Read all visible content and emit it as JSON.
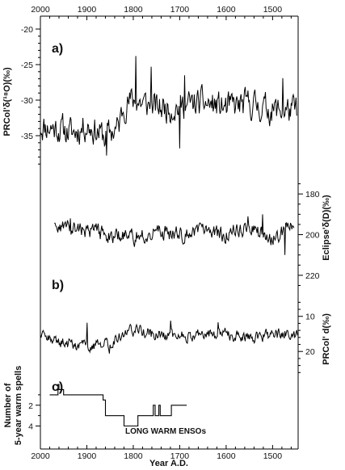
{
  "chart_data": {
    "type": "line",
    "x_axis": {
      "label": "Year A.D.",
      "reversed": true,
      "range": [
        2000,
        1445
      ],
      "ticks": [
        2000,
        1900,
        1800,
        1700,
        1600,
        1500
      ]
    },
    "panel_labels": {
      "a": "a)",
      "b": "b)",
      "c": "c)"
    },
    "annotation": "LONG WARM ENSOs",
    "series": [
      {
        "key": "o18",
        "axis_side": "left",
        "ylabel": "PRCol'δ(¹⁸O)(‰)",
        "ylim": [
          -20,
          -40
        ],
        "yticks": [
          -20,
          -25,
          -30,
          -35
        ],
        "x_range": [
          2000,
          1447
        ],
        "level_points": [
          [
            2000,
            -33.6
          ],
          [
            1960,
            -34.0
          ],
          [
            1930,
            -34.6
          ],
          [
            1900,
            -33.5
          ],
          [
            1880,
            -34.3
          ],
          [
            1860,
            -35.2
          ],
          [
            1845,
            -34.3
          ],
          [
            1832,
            -33.9
          ],
          [
            1820,
            -30.6
          ],
          [
            1800,
            -30.0
          ],
          [
            1750,
            -31.1
          ],
          [
            1700,
            -30.9
          ],
          [
            1650,
            -30.4
          ],
          [
            1600,
            -31.1
          ],
          [
            1550,
            -30.5
          ],
          [
            1500,
            -31.4
          ],
          [
            1447,
            -31.5
          ]
        ],
        "extremes": [
          [
            1857,
            -37.8
          ],
          [
            1795,
            -23.8
          ],
          [
            1762,
            -25.3
          ],
          [
            1700,
            -36.8
          ],
          [
            1690,
            -26.5
          ],
          [
            1478,
            -26.9
          ]
        ],
        "variability": 1.7,
        "seed": 11
      },
      {
        "key": "d",
        "axis_side": "right",
        "ylabel": "Eclipse'δ(D)(‰)",
        "ylim": [
          170,
          226
        ],
        "yticks": [
          180,
          200,
          220
        ],
        "x_range": [
          1970,
          1453
        ],
        "level_points": [
          [
            1970,
            196
          ],
          [
            1900,
            198
          ],
          [
            1850,
            200
          ],
          [
            1800,
            201
          ],
          [
            1750,
            199
          ],
          [
            1700,
            200
          ],
          [
            1650,
            199
          ],
          [
            1600,
            200
          ],
          [
            1550,
            197
          ],
          [
            1500,
            202
          ],
          [
            1453,
            196
          ]
        ],
        "extremes": [
          [
            1935,
            192
          ],
          [
            1797,
            206
          ],
          [
            1553,
            191
          ],
          [
            1522,
            190
          ],
          [
            1473,
            210
          ]
        ],
        "variability": 3.2,
        "seed": 23
      },
      {
        "key": "dexcess",
        "axis_side": "right",
        "ylabel": "PRCol' d(‰)",
        "ylim": [
          5,
          28
        ],
        "yticks": [
          10,
          20
        ],
        "x_range": [
          2000,
          1445
        ],
        "level_points": [
          [
            2000,
            16
          ],
          [
            1950,
            17.5
          ],
          [
            1920,
            18.3
          ],
          [
            1880,
            18.2
          ],
          [
            1850,
            18
          ],
          [
            1828,
            15
          ],
          [
            1800,
            14
          ],
          [
            1750,
            15.3
          ],
          [
            1700,
            15.5
          ],
          [
            1650,
            15.2
          ],
          [
            1600,
            15
          ],
          [
            1550,
            16
          ],
          [
            1500,
            15
          ],
          [
            1445,
            15
          ]
        ],
        "extremes": [
          [
            1900,
            11.8
          ],
          [
            1852,
            20.6
          ],
          [
            1720,
            11.2
          ],
          [
            1617,
            11.7
          ]
        ],
        "variability": 1.4,
        "seed": 37
      },
      {
        "key": "warm_spells",
        "axis_side": "left",
        "ylabel_lines": [
          "Number of",
          "5-year warm spells"
        ],
        "ylim": [
          0,
          5.2
        ],
        "yticks": [
          2,
          4
        ],
        "step": true,
        "x": [
          1980,
          1963,
          1962,
          1960,
          1950,
          1910,
          1900,
          1872,
          1865,
          1860,
          1845,
          1830,
          1820,
          1808,
          1790,
          1780,
          1770,
          1757,
          1753,
          1745,
          1742,
          1722,
          1718,
          1685
        ],
        "values": [
          1,
          1,
          0,
          0.5,
          1,
          1,
          1,
          1,
          1.5,
          3,
          3,
          3,
          4,
          4,
          3,
          3,
          3,
          2,
          3,
          2,
          3,
          3,
          2,
          2
        ]
      }
    ]
  }
}
